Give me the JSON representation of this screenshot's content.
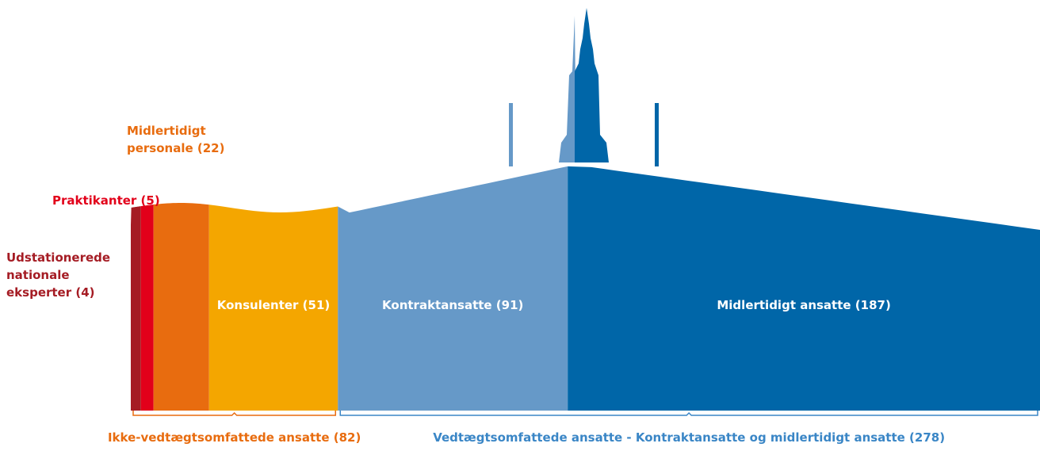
{
  "chart_data": {
    "type": "silhouette-bar",
    "categories": [
      "Udstationerede\nnationale\neksperter (4)",
      "Praktikanter (5)",
      "Midlertidigt\npersonale (22)",
      "Konsulenter (51)",
      "Kontraktansatte (91)",
      "Midlertidigt ansatte (187)"
    ],
    "values": [
      4,
      5,
      22,
      51,
      91,
      187
    ],
    "colors": [
      "#a51c24",
      "#e2001a",
      "#e86c0f",
      "#f4a600",
      "#6699c8",
      "#0066a8"
    ],
    "groups": [
      {
        "label": "Ikke-vedtægtsomfattede ansatte (82)",
        "value": 82,
        "color": "#e86c0f"
      },
      {
        "label": "Vedtægtsomfattede ansatte - Kontraktansatte og midlertidigt ansatte (278)",
        "value": 278,
        "color": "#3a86c6"
      }
    ]
  }
}
